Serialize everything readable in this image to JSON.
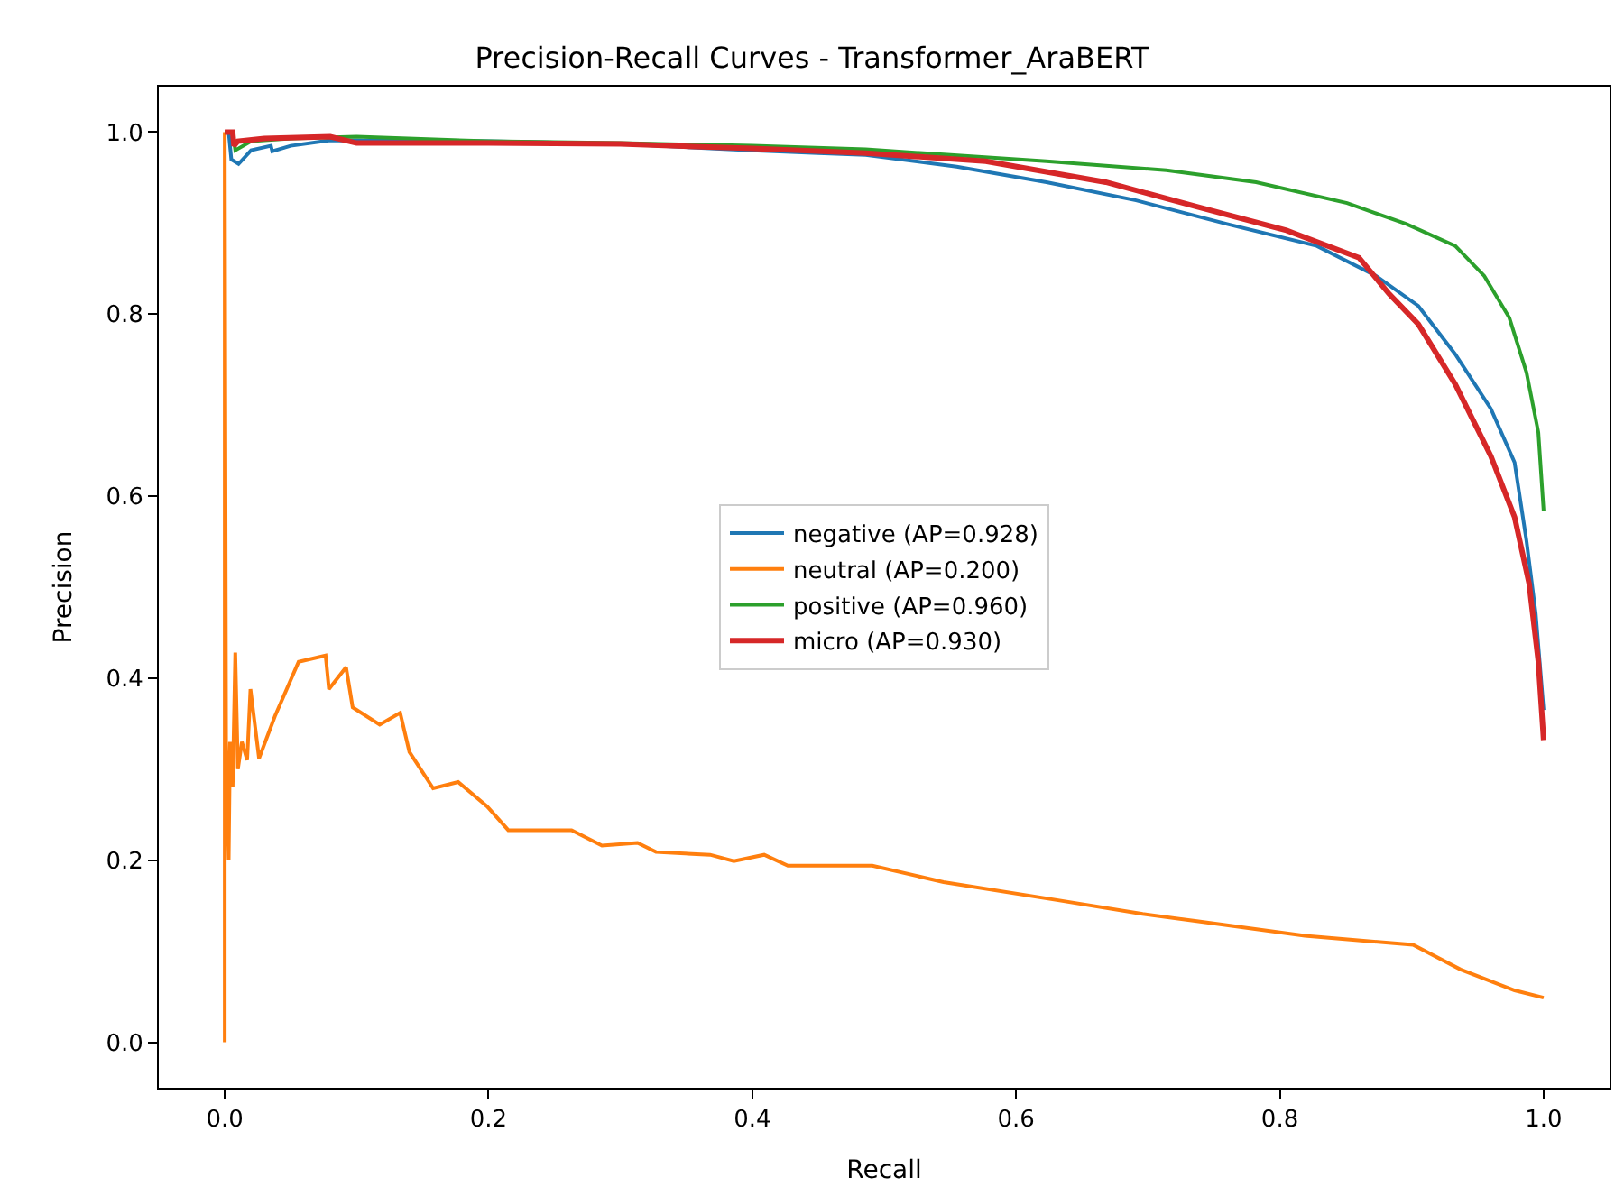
{
  "chart_data": {
    "type": "line",
    "title": "Precision-Recall Curves - Transformer_AraBERT",
    "xlabel": "Recall",
    "ylabel": "Precision",
    "xlim": [
      -0.05,
      1.05
    ],
    "ylim": [
      -0.05,
      1.05
    ],
    "xticks": [
      {
        "value": 0,
        "label": "0.0"
      },
      0.2,
      0.4,
      0.6,
      0.8,
      {
        "value": 1,
        "label": "1.0"
      }
    ],
    "yticks": [
      {
        "value": 0,
        "label": "0.0"
      },
      0.2,
      0.4,
      0.6,
      0.8,
      {
        "value": 1,
        "label": "1.0"
      }
    ],
    "legend": "center",
    "marker": "none",
    "line_style": "solid",
    "series": [
      {
        "name": "negative (AP=0.928)",
        "color": "#1f77b4",
        "x": [
          0,
          0.003,
          0.005,
          0.0105,
          0.02,
          0.035,
          0.036,
          0.05,
          0.08,
          0.2,
          0.3,
          0.4,
          0.45,
          0.486,
          0.555,
          0.623,
          0.691,
          0.76,
          0.828,
          0.873,
          0.905,
          0.933,
          0.96,
          0.978,
          0.987,
          0.994,
          1.0
        ],
        "values": [
          1.0,
          1.0,
          0.97,
          0.965,
          0.98,
          0.985,
          0.979,
          0.985,
          0.991,
          0.99,
          0.987,
          0.98,
          0.977,
          0.975,
          0.962,
          0.945,
          0.925,
          0.899,
          0.875,
          0.842,
          0.809,
          0.756,
          0.696,
          0.637,
          0.551,
          0.471,
          0.365
        ]
      },
      {
        "name": "neutral (AP=0.200)",
        "color": "#ff7f0e",
        "x": [
          0,
          0,
          0.001,
          0.003,
          0.004,
          0.006,
          0.008,
          0.01,
          0.013,
          0.017,
          0.0195,
          0.026,
          0.038,
          0.056,
          0.0765,
          0.079,
          0.092,
          0.097,
          0.1175,
          0.133,
          0.14,
          0.158,
          0.177,
          0.199,
          0.215,
          0.263,
          0.286,
          0.313,
          0.327,
          0.368,
          0.386,
          0.409,
          0.427,
          0.491,
          0.545,
          0.632,
          0.696,
          0.737,
          0.819,
          0.901,
          0.937,
          0.978,
          1.0
        ],
        "values": [
          0,
          1.0,
          0.33,
          0.2,
          0.33,
          0.28,
          0.428,
          0.3,
          0.33,
          0.31,
          0.388,
          0.312,
          0.358,
          0.418,
          0.425,
          0.388,
          0.412,
          0.368,
          0.349,
          0.362,
          0.319,
          0.279,
          0.286,
          0.259,
          0.233,
          0.233,
          0.216,
          0.219,
          0.209,
          0.206,
          0.199,
          0.206,
          0.194,
          0.194,
          0.176,
          0.156,
          0.141,
          0.133,
          0.117,
          0.107,
          0.08,
          0.057,
          0.049
        ]
      },
      {
        "name": "positive (AP=0.960)",
        "color": "#2ca02c",
        "x": [
          0,
          0.006,
          0.008,
          0.02,
          0.05,
          0.1,
          0.2,
          0.3,
          0.4,
          0.486,
          0.623,
          0.714,
          0.782,
          0.851,
          0.896,
          0.933,
          0.955,
          0.974,
          0.987,
          0.996,
          1.0
        ],
        "values": [
          1.0,
          1.0,
          0.98,
          0.99,
          0.993,
          0.995,
          0.99,
          0.988,
          0.985,
          0.981,
          0.968,
          0.958,
          0.945,
          0.922,
          0.899,
          0.875,
          0.842,
          0.796,
          0.736,
          0.67,
          0.584
        ]
      },
      {
        "name": "micro (AP=0.930)",
        "color": "#d62728",
        "x": [
          0,
          0.006,
          0.007,
          0.01,
          0.03,
          0.08,
          0.1,
          0.2,
          0.3,
          0.4,
          0.486,
          0.577,
          0.668,
          0.737,
          0.805,
          0.86,
          0.883,
          0.905,
          0.933,
          0.96,
          0.978,
          0.989,
          0.996,
          1.0
        ],
        "values": [
          1.0,
          1.0,
          0.985,
          0.99,
          0.993,
          0.995,
          0.988,
          0.988,
          0.987,
          0.982,
          0.977,
          0.968,
          0.945,
          0.918,
          0.892,
          0.862,
          0.822,
          0.789,
          0.723,
          0.644,
          0.577,
          0.504,
          0.418,
          0.332
        ]
      }
    ]
  }
}
